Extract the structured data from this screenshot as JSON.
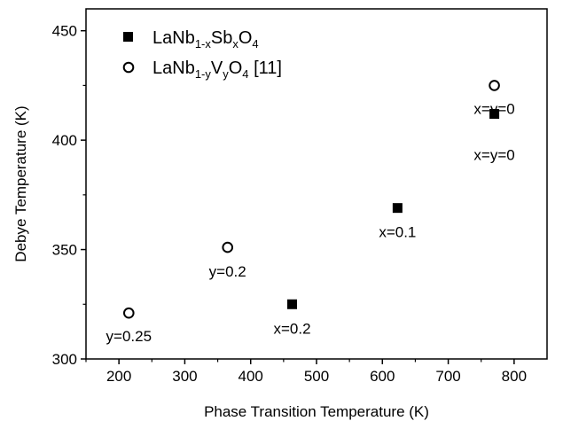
{
  "chart_data": {
    "type": "scatter",
    "xlabel": "Phase Transition Temperature (K)",
    "ylabel": "Debye Temperature (K)",
    "xlim": [
      150,
      850
    ],
    "ylim": [
      300,
      460
    ],
    "xticks": [
      200,
      300,
      400,
      500,
      600,
      700,
      800
    ],
    "yticks": [
      300,
      350,
      400,
      450
    ],
    "grid": false,
    "legend_position": "top-left",
    "series": [
      {
        "name": "LaNb1-xSbxO4",
        "legend": {
          "base": "LaNb",
          "sub1": "1-x",
          "mid": "Sb",
          "sub2": "x",
          "tail": "O",
          "sub3": "4",
          "suffix": ""
        },
        "marker": "filled-square",
        "points": [
          {
            "x": 463,
            "y": 325,
            "label": "x=0.2"
          },
          {
            "x": 623,
            "y": 369,
            "label": "x=0.1"
          },
          {
            "x": 770,
            "y": 412,
            "label": "x=y=0"
          }
        ]
      },
      {
        "name": "LaNb1-yVyO4 [11]",
        "legend": {
          "base": "LaNb",
          "sub1": "1-y",
          "mid": "V",
          "sub2": "y",
          "tail": "O",
          "sub3": "4",
          "suffix": " [11]"
        },
        "marker": "open-circle",
        "points": [
          {
            "x": 215,
            "y": 321,
            "label": "y=0.25"
          },
          {
            "x": 365,
            "y": 351,
            "label": "y=0.2"
          },
          {
            "x": 770,
            "y": 425,
            "label": "x=y=0"
          }
        ]
      }
    ]
  }
}
